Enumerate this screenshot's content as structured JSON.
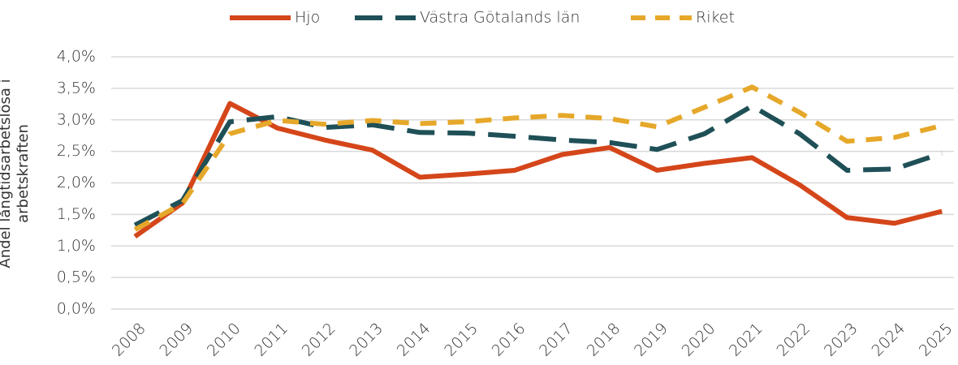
{
  "chart_data": {
    "type": "line",
    "ylabel": "Andel långtidsarbetslösa i arbetskraften",
    "categories": [
      "2008",
      "2009",
      "2010",
      "2011",
      "2012",
      "2013",
      "2014",
      "2015",
      "2016",
      "2017",
      "2018",
      "2019",
      "2020",
      "2021",
      "2022",
      "2023",
      "2024",
      "2025"
    ],
    "series": [
      {
        "name": "Hjo",
        "color": "#d4461a",
        "dash": "solid",
        "values": [
          1.15,
          1.68,
          3.26,
          2.87,
          2.68,
          2.52,
          2.09,
          2.14,
          2.2,
          2.45,
          2.56,
          2.2,
          2.31,
          2.4,
          1.97,
          1.45,
          1.36,
          1.55
        ]
      },
      {
        "name": "Västra Götalands län",
        "color": "#1f5057",
        "dash": "long-dash",
        "values": [
          1.33,
          1.72,
          2.97,
          3.05,
          2.88,
          2.92,
          2.8,
          2.79,
          2.74,
          2.68,
          2.64,
          2.53,
          2.78,
          3.22,
          2.78,
          2.2,
          2.22,
          2.47
        ]
      },
      {
        "name": "Riket",
        "color": "#e6a82a",
        "dash": "dash",
        "values": [
          1.26,
          1.67,
          2.78,
          2.99,
          2.93,
          2.99,
          2.94,
          2.97,
          3.03,
          3.07,
          3.02,
          2.89,
          3.2,
          3.52,
          3.12,
          2.66,
          2.72,
          2.91
        ]
      }
    ],
    "ylim": [
      0,
      4
    ],
    "yticks": [
      {
        "value": 0,
        "label": "0,0%"
      },
      {
        "value": 0.5,
        "label": "0,5%"
      },
      {
        "value": 1,
        "label": "1,0%"
      },
      {
        "value": 1.5,
        "label": "1,5%"
      },
      {
        "value": 2,
        "label": "2,0%"
      },
      {
        "value": 2.5,
        "label": "2,5%"
      },
      {
        "value": 3,
        "label": "3,0%"
      },
      {
        "value": 3.5,
        "label": "3,5%"
      },
      {
        "value": 4,
        "label": "4,0%"
      }
    ],
    "grid": true,
    "legend": "top"
  }
}
